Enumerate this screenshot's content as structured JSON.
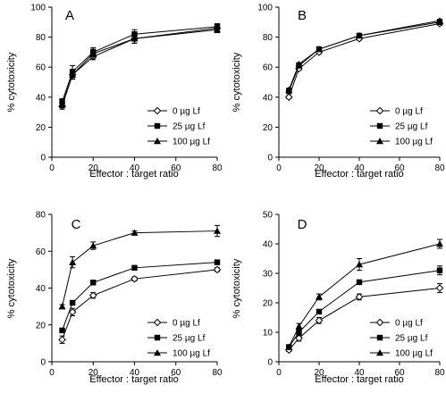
{
  "chart_data": [
    {
      "type": "line",
      "letter": "A",
      "xlabel": "Effector : target ratio",
      "ylabel": "% cytotoxicity",
      "xlim": [
        0,
        80
      ],
      "ylim": [
        0,
        100
      ],
      "xticks": [
        0,
        20,
        40,
        60,
        80
      ],
      "yticks": [
        0,
        20,
        40,
        60,
        80,
        100
      ],
      "x": [
        5,
        10,
        20,
        40,
        80
      ],
      "legend_position": "bottom-right",
      "series": [
        {
          "name": "0 µg Lf",
          "marker": "diamond-open",
          "values": [
            34,
            55,
            67,
            79,
            86
          ],
          "errors": [
            2,
            3,
            2,
            3,
            2
          ]
        },
        {
          "name": "25 µg Lf",
          "marker": "square-filled",
          "values": [
            37,
            57,
            70,
            82,
            87
          ],
          "errors": [
            2,
            4,
            3,
            3,
            2
          ]
        },
        {
          "name": "100 µg Lf",
          "marker": "triangle-filled",
          "values": [
            35,
            55,
            69,
            79,
            85
          ],
          "errors": [
            2,
            3,
            3,
            3,
            2
          ]
        }
      ]
    },
    {
      "type": "line",
      "letter": "B",
      "xlabel": "Effector : target ratio",
      "ylabel": "% cytotoxicity",
      "xlim": [
        0,
        80
      ],
      "ylim": [
        0,
        100
      ],
      "xticks": [
        0,
        20,
        40,
        60,
        80
      ],
      "yticks": [
        0,
        20,
        40,
        60,
        80,
        100
      ],
      "x": [
        5,
        10,
        20,
        40,
        80
      ],
      "legend_position": "bottom-right",
      "series": [
        {
          "name": "0 µg Lf",
          "marker": "diamond-open",
          "values": [
            40,
            59,
            70,
            79,
            89
          ],
          "errors": [
            1,
            1,
            1,
            1,
            1
          ]
        },
        {
          "name": "25 µg Lf",
          "marker": "square-filled",
          "values": [
            44,
            61,
            72,
            81,
            90
          ],
          "errors": [
            1,
            1,
            1,
            1,
            1
          ]
        },
        {
          "name": "100 µg Lf",
          "marker": "triangle-filled",
          "values": [
            45,
            62,
            72,
            81,
            91
          ],
          "errors": [
            1,
            1,
            1,
            1,
            1
          ]
        }
      ]
    },
    {
      "type": "line",
      "letter": "C",
      "xlabel": "Effector : target ratio",
      "ylabel": "% cytotoxicity",
      "xlim": [
        0,
        80
      ],
      "ylim": [
        0,
        80
      ],
      "xticks": [
        0,
        20,
        40,
        60,
        80
      ],
      "yticks": [
        0,
        20,
        40,
        60,
        80
      ],
      "x": [
        5,
        10,
        20,
        40,
        80
      ],
      "legend_position": "bottom-right",
      "series": [
        {
          "name": "0 µg Lf",
          "marker": "diamond-open",
          "values": [
            12,
            27,
            36,
            45,
            50
          ],
          "errors": [
            2,
            2,
            1.5,
            1,
            1
          ]
        },
        {
          "name": "25 µg Lf",
          "marker": "square-filled",
          "values": [
            17,
            32,
            43,
            51,
            54
          ],
          "errors": [
            1,
            1,
            1,
            1,
            1
          ]
        },
        {
          "name": "100 µg Lf",
          "marker": "triangle-filled",
          "values": [
            30,
            54,
            63,
            70,
            71
          ],
          "errors": [
            1,
            3,
            2,
            1,
            3
          ]
        }
      ]
    },
    {
      "type": "line",
      "letter": "D",
      "xlabel": "Effector : target ratio",
      "ylabel": "% cytotoxicity",
      "xlim": [
        0,
        80
      ],
      "ylim": [
        0,
        50
      ],
      "xticks": [
        0,
        20,
        40,
        60,
        80
      ],
      "yticks": [
        0,
        10,
        20,
        30,
        40,
        50
      ],
      "x": [
        5,
        10,
        20,
        40,
        80
      ],
      "legend_position": "bottom-right",
      "series": [
        {
          "name": "0 µg Lf",
          "marker": "diamond-open",
          "values": [
            4,
            8,
            14,
            22,
            25
          ],
          "errors": [
            0.5,
            1,
            1,
            1,
            1.5
          ]
        },
        {
          "name": "25 µg Lf",
          "marker": "square-filled",
          "values": [
            5,
            10,
            17,
            27,
            31
          ],
          "errors": [
            0.5,
            1,
            0.5,
            0.5,
            1.5
          ]
        },
        {
          "name": "100 µg Lf",
          "marker": "triangle-filled",
          "values": [
            5,
            12,
            22,
            33,
            40
          ],
          "errors": [
            0.5,
            1,
            1,
            2,
            1.5
          ]
        }
      ]
    }
  ]
}
